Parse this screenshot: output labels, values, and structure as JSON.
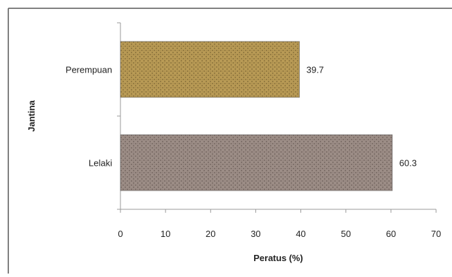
{
  "chart_data": {
    "type": "bar",
    "orientation": "horizontal",
    "categories": [
      "Perempuan",
      "Lelaki"
    ],
    "values": [
      39.7,
      60.3
    ],
    "data_labels": [
      "39.7",
      "60.3"
    ],
    "xlabel": "Peratus (%)",
    "ylabel": "Jantina",
    "xlim": [
      0,
      70
    ],
    "xticks": [
      0,
      10,
      20,
      30,
      40,
      50,
      60,
      70
    ],
    "grid": false,
    "legend": "none",
    "series": [
      {
        "values": [
          39.7,
          60.3
        ],
        "colors": [
          "#b89a55",
          "#9c8d86"
        ],
        "pattern_dot_colors": [
          "#7d6733",
          "#6a5d58"
        ]
      }
    ]
  }
}
